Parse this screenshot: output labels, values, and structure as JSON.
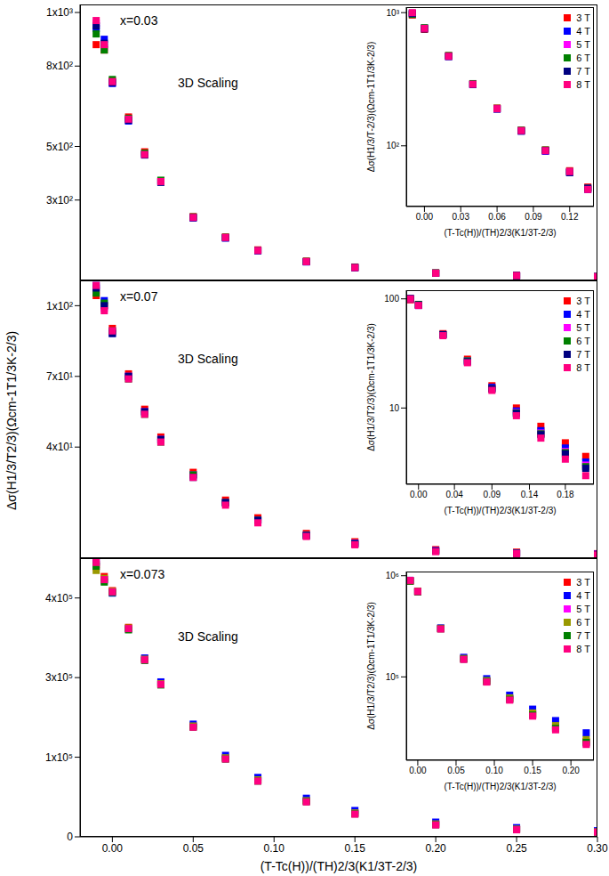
{
  "ylabel": "Δσ(H1/3/T2/3)(Ωcm-1T1/3K-2/3)",
  "xlabel": "(T-Tc(H))/(TH)2/3(K1/3T-2/3)",
  "chart_data": [
    {
      "type": "scatter",
      "annotation": "x=0.03",
      "text": "3D Scaling",
      "marker": "square",
      "tick_labels": "y",
      "x": [
        -0.01,
        -0.005,
        0,
        0.01,
        0.02,
        0.03,
        0.05,
        0.07,
        0.09,
        0.12,
        0.15,
        0.2,
        0.25,
        0.3
      ],
      "xlim": [
        -0.02,
        0.3
      ],
      "xticks": [
        {
          "value": 0,
          "label": "0.00"
        },
        {
          "value": 0.05,
          "label": "0.05"
        },
        {
          "value": 0.1,
          "label": "0.10"
        },
        {
          "value": 0.15,
          "label": "0.15"
        },
        {
          "value": 0.2,
          "label": "0.20"
        },
        {
          "value": 0.25,
          "label": "0.25"
        },
        {
          "value": 0.3,
          "label": "0.30"
        }
      ],
      "ylim": [
        0,
        1030
      ],
      "yticks": [
        0,
        {
          "value": 300,
          "label": "3x10²"
        },
        {
          "value": 500,
          "label": "5x10²"
        },
        {
          "value": 800,
          "label": "8x10²"
        },
        {
          "value": 1000,
          "label": "1x10³"
        }
      ],
      "series": [
        {
          "name": "3 T",
          "color": "#ff0000",
          "values": [
            880,
            860,
            745,
            610,
            480,
            372,
            238,
            162,
            114,
            72,
            50,
            28,
            19,
            15
          ]
        },
        {
          "name": "4 T",
          "color": "#0000ff",
          "values": [
            940,
            900,
            735,
            595,
            470,
            368,
            233,
            158,
            111,
            69,
            47,
            27,
            18,
            14
          ]
        },
        {
          "name": "5 T",
          "color": "#ff00ff",
          "values": [
            960,
            870,
            740,
            600,
            472,
            370,
            236,
            160,
            112,
            70,
            48,
            27,
            18,
            14
          ]
        },
        {
          "name": "6 T",
          "color": "#008000",
          "values": [
            920,
            860,
            750,
            605,
            475,
            374,
            237,
            161,
            113,
            71,
            49,
            28,
            18,
            14
          ]
        },
        {
          "name": "7 T",
          "color": "#000080",
          "values": [
            950,
            885,
            738,
            598,
            468,
            366,
            234,
            159,
            111,
            70,
            48,
            27,
            18,
            14
          ]
        },
        {
          "name": "8 T",
          "color": "#ff0080",
          "values": [
            970,
            880,
            742,
            602,
            470,
            369,
            235,
            160,
            112,
            70,
            48,
            27,
            18,
            13
          ]
        }
      ],
      "inset": {
        "type": "scatter",
        "log": "y",
        "marker": "square",
        "legend": "top-right",
        "xlabel": "(T-Tc(H))/(TH)2/3(K1/3T-2/3)",
        "ylabel": "Δσ(H1/3/T-2/3)(Ωcm-1T1/3K-2/3)",
        "x": [
          -0.01,
          0,
          0.02,
          0.04,
          0.06,
          0.08,
          0.1,
          0.12,
          0.135
        ],
        "xlim": [
          -0.015,
          0.14
        ],
        "xticks": [
          {
            "value": 0,
            "label": "0.00"
          },
          {
            "value": 0.03,
            "label": "0.03"
          },
          {
            "value": 0.06,
            "label": "0.06"
          },
          {
            "value": 0.09,
            "label": "0.09"
          },
          {
            "value": 0.12,
            "label": "0.12"
          }
        ],
        "ylim": [
          35,
          1100
        ],
        "yticks": [
          {
            "value": 100,
            "label": "10²"
          },
          {
            "value": 1000,
            "label": "10³"
          }
        ],
        "series": [
          {
            "name": "3 T",
            "color": "#ff0000",
            "values": [
              960,
              750,
              475,
              292,
              192,
              131,
              93,
              65,
              49
            ]
          },
          {
            "name": "4 T",
            "color": "#0000ff",
            "values": [
              990,
              765,
              468,
              288,
              189,
              129,
              91,
              63,
              47
            ]
          },
          {
            "name": "5 T",
            "color": "#ff00ff",
            "values": [
              980,
              760,
              472,
              290,
              190,
              130,
              92,
              64,
              48
            ]
          },
          {
            "name": "6 T",
            "color": "#008000",
            "values": [
              970,
              770,
              476,
              293,
              191,
              131,
              93,
              64,
              48
            ]
          },
          {
            "name": "7 T",
            "color": "#000080",
            "values": [
              985,
              755,
              469,
              289,
              189,
              129,
              92,
              63,
              48
            ]
          },
          {
            "name": "8 T",
            "color": "#ff0080",
            "values": [
              1000,
              762,
              470,
              290,
              190,
              130,
              92,
              64,
              47
            ]
          }
        ]
      }
    },
    {
      "type": "scatter",
      "annotation": "x=0.07",
      "text": "3D Scaling",
      "marker": "square",
      "tick_labels": "y",
      "x": [
        -0.01,
        -0.005,
        0,
        0.01,
        0.02,
        0.03,
        0.05,
        0.07,
        0.09,
        0.12,
        0.15,
        0.2,
        0.25,
        0.3
      ],
      "xlim": [
        -0.02,
        0.3
      ],
      "xticks": [
        {
          "value": 0,
          "label": "0.00"
        },
        {
          "value": 0.05,
          "label": "0.05"
        },
        {
          "value": 0.1,
          "label": "0.10"
        },
        {
          "value": 0.15,
          "label": "0.15"
        },
        {
          "value": 0.2,
          "label": "0.20"
        },
        {
          "value": 0.25,
          "label": "0.25"
        },
        {
          "value": 0.3,
          "label": "0.30"
        }
      ],
      "ylim": [
        0,
        110
      ],
      "yticks": [
        0,
        {
          "value": 44,
          "label": "4x10¹"
        },
        {
          "value": 72,
          "label": "7x10¹"
        },
        {
          "value": 100,
          "label": "1x10²"
        }
      ],
      "series": [
        {
          "name": "3 T",
          "color": "#ff0000",
          "values": [
            104,
            100,
            91,
            73,
            59,
            48,
            34,
            23,
            16,
            9.8,
            6.5,
            3.4,
            2.4,
            1.8
          ]
        },
        {
          "name": "4 T",
          "color": "#0000ff",
          "values": [
            108,
            102,
            89,
            72,
            58,
            47,
            33,
            22,
            15,
            9.2,
            6,
            3,
            2.1,
            1.6
          ]
        },
        {
          "name": "5 T",
          "color": "#ff00ff",
          "values": [
            106,
            99,
            90,
            72,
            58,
            47,
            33,
            22,
            15,
            9,
            5.8,
            2.9,
            2,
            1.5
          ]
        },
        {
          "name": "6 T",
          "color": "#008000",
          "values": [
            105,
            101,
            90,
            71,
            57,
            46,
            33,
            22,
            15,
            9,
            5.7,
            2.8,
            1.9,
            1.4
          ]
        },
        {
          "name": "7 T",
          "color": "#000080",
          "values": [
            107,
            100,
            89,
            72,
            58,
            47,
            32,
            22,
            15,
            8.9,
            5.6,
            2.8,
            1.9,
            1.4
          ]
        },
        {
          "name": "8 T",
          "color": "#ff0080",
          "values": [
            108,
            98,
            90,
            71,
            57,
            46,
            32,
            21,
            14,
            8.6,
            5.3,
            2.6,
            1.8,
            1.3
          ]
        }
      ],
      "inset": {
        "type": "scatter",
        "log": "y",
        "marker": "square",
        "legend": "top-right",
        "xlabel": "(T-Tc(H))/(TH)2/3(K1/3T-2/3)",
        "ylabel": "Δσ(H1/3/T2/3)(Ωcm-1T1/3K-2/3)",
        "x": [
          -0.01,
          0,
          0.03,
          0.06,
          0.09,
          0.12,
          0.15,
          0.18,
          0.205
        ],
        "xlim": [
          -0.015,
          0.215
        ],
        "xticks": [
          {
            "value": 0,
            "label": "0.00"
          },
          {
            "value": 0.044,
            "label": "0.04"
          },
          {
            "value": 0.09,
            "label": "0.09"
          },
          {
            "value": 0.136,
            "label": "0.14"
          },
          {
            "value": 0.18,
            "label": "0.18"
          }
        ],
        "ylim": [
          2,
          120
        ],
        "yticks": [
          10,
          100
        ],
        "series": [
          {
            "name": "3 T",
            "color": "#ff0000",
            "values": [
              98,
              88,
              48,
              28,
              16,
              10,
              6.8,
              4.8,
              3.6
            ]
          },
          {
            "name": "4 T",
            "color": "#0000ff",
            "values": [
              100,
              87,
              47,
              27,
              15.5,
              9.4,
              6.2,
              4.3,
              3.2
            ]
          },
          {
            "name": "5 T",
            "color": "#ff00ff",
            "values": [
              99,
              88,
              47,
              27,
              15,
              9.1,
              5.9,
              4,
              3
            ]
          },
          {
            "name": "6 T",
            "color": "#008000",
            "values": [
              100,
              89,
              47,
              27,
              15,
              9,
              5.8,
              3.9,
              2.9
            ]
          },
          {
            "name": "7 T",
            "color": "#000080",
            "values": [
              101,
              88,
              47,
              26.5,
              15,
              8.9,
              5.7,
              3.8,
              2.8
            ]
          },
          {
            "name": "8 T",
            "color": "#ff0080",
            "values": [
              100,
              87,
              46,
              26,
              14.5,
              8.5,
              5.3,
              3.4,
              2.4
            ]
          }
        ]
      }
    },
    {
      "type": "scatter",
      "annotation": "x=0.073",
      "text": "3D Scaling",
      "marker": "square",
      "x": [
        -0.01,
        -0.005,
        0,
        0.01,
        0.02,
        0.03,
        0.05,
        0.07,
        0.09,
        0.12,
        0.15,
        0.2,
        0.25,
        0.3
      ],
      "xlim": [
        -0.02,
        0.3
      ],
      "xticks": [
        {
          "value": 0,
          "label": "0.00"
        },
        {
          "value": 0.05,
          "label": "0.05"
        },
        {
          "value": 0.1,
          "label": "0.10"
        },
        {
          "value": 0.15,
          "label": "0.15"
        },
        {
          "value": 0.2,
          "label": "0.20"
        },
        {
          "value": 0.25,
          "label": "0.25"
        },
        {
          "value": 0.3,
          "label": "0.30"
        }
      ],
      "ylim": [
        0,
        455000
      ],
      "yticks": [
        0,
        {
          "value": 130000,
          "label": "1x10⁵"
        },
        {
          "value": 260000,
          "label": "3x10⁵"
        },
        {
          "value": 390000,
          "label": "4x10⁵"
        }
      ],
      "series": [
        {
          "name": "3 T",
          "color": "#ff0000",
          "values": [
            445000,
            425000,
            402000,
            342000,
            291000,
            251000,
            181000,
            129000,
            93000,
            59000,
            39000,
            21000,
            12500,
            8300
          ]
        },
        {
          "name": "4 T",
          "color": "#0000ff",
          "values": [
            450000,
            420000,
            398000,
            340000,
            292000,
            253000,
            184000,
            133000,
            97000,
            63000,
            43000,
            24000,
            15000,
            10000
          ]
        },
        {
          "name": "5 T",
          "color": "#ff00ff",
          "values": [
            440000,
            418000,
            400000,
            339000,
            289000,
            249000,
            180000,
            128000,
            92000,
            58000,
            38000,
            20000,
            12000,
            8000
          ]
        },
        {
          "name": "6 T",
          "color": "#999900",
          "values": [
            435000,
            422000,
            401000,
            341000,
            290000,
            250000,
            181000,
            129000,
            93000,
            59000,
            39000,
            21000,
            12500,
            8200
          ]
        },
        {
          "name": "7 T",
          "color": "#008000",
          "values": [
            442000,
            416000,
            399000,
            338000,
            288000,
            248000,
            179000,
            127000,
            91000,
            57500,
            37500,
            19800,
            11800,
            7900
          ]
        },
        {
          "name": "8 T",
          "color": "#ff0080",
          "values": [
            448000,
            420000,
            400000,
            340000,
            289000,
            249000,
            179000,
            127000,
            91000,
            57000,
            37000,
            19500,
            11500,
            7700
          ]
        }
      ],
      "inset": {
        "type": "scatter",
        "log": "y",
        "marker": "square",
        "legend": "top-right",
        "xlabel": "(T-Tc(H))/(TH)2/3(K1/3T-2/3)",
        "ylabel": "Δσ(H1/3/T2/3)(Ωcm-1T1/3K-2/3)",
        "x": [
          -0.01,
          0,
          0.03,
          0.06,
          0.09,
          0.12,
          0.15,
          0.18,
          0.22
        ],
        "xlim": [
          -0.015,
          0.23
        ],
        "xticks": [
          {
            "value": 0,
            "label": "0.00"
          },
          {
            "value": 0.05,
            "label": "0.05"
          },
          {
            "value": 0.1,
            "label": "0.10"
          },
          {
            "value": 0.15,
            "label": "0.15"
          },
          {
            "value": 0.2,
            "label": "0.20"
          }
        ],
        "ylim": [
          15000,
          1100000
        ],
        "yticks": [
          {
            "value": 100000,
            "label": "10⁵"
          },
          {
            "value": 1000000,
            "label": "10⁶"
          }
        ],
        "series": [
          {
            "name": "3 T",
            "color": "#ff0000",
            "values": [
              880000,
              690000,
              300000,
              152000,
              91000,
              61000,
              43000,
              32000,
              23000
            ]
          },
          {
            "name": "4 T",
            "color": "#0000ff",
            "values": [
              900000,
              700000,
              305000,
              156000,
              96000,
              66000,
              48000,
              37000,
              28000
            ]
          },
          {
            "name": "5 T",
            "color": "#ff00ff",
            "values": [
              890000,
              700000,
              300000,
              150000,
              90000,
              60000,
              42000,
              31000,
              22000
            ]
          },
          {
            "name": "6 T",
            "color": "#999900",
            "values": [
              895000,
              705000,
              302000,
              152000,
              92000,
              62000,
              44000,
              33000,
              24000
            ]
          },
          {
            "name": "7 T",
            "color": "#008000",
            "values": [
              885000,
              695000,
              299000,
              150000,
              90000,
              60000,
              42000,
              31000,
              22500
            ]
          },
          {
            "name": "8 T",
            "color": "#ff0080",
            "values": [
              900000,
              700000,
              298000,
              149000,
              89000,
              59000,
              41000,
              30000,
              21500
            ]
          }
        ]
      }
    }
  ]
}
